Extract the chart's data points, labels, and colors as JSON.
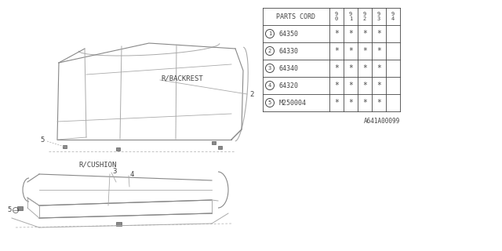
{
  "bg_color": "#ffffff",
  "table": {
    "rows": [
      [
        "1",
        "64350"
      ],
      [
        "2",
        "64330"
      ],
      [
        "3",
        "64340"
      ],
      [
        "4",
        "64320"
      ],
      [
        "5",
        "M250004"
      ]
    ],
    "asterisk_cols": 4
  },
  "footer_text": "A641A00099",
  "text_color": "#666666",
  "line_color": "#999999",
  "dark_color": "#444444"
}
